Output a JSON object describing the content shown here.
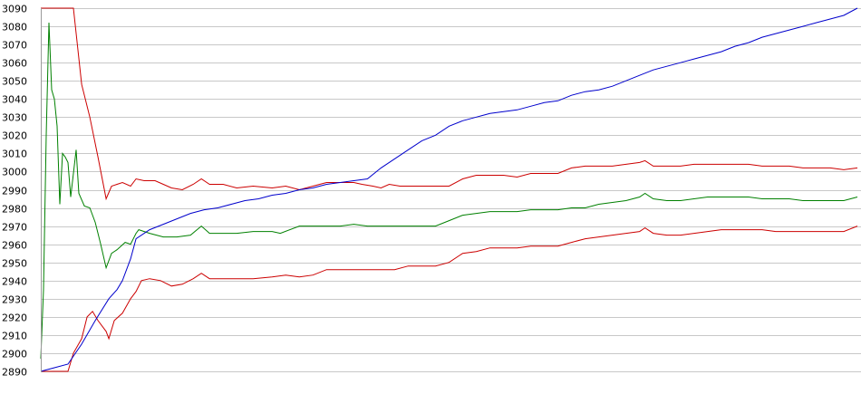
{
  "chart_data": {
    "type": "line",
    "title": "",
    "xlabel": "",
    "ylabel": "",
    "ylim": [
      2890,
      3090
    ],
    "yticks": [
      2890,
      2900,
      2910,
      2920,
      2930,
      2940,
      2950,
      2960,
      2970,
      2980,
      2990,
      3000,
      3010,
      3020,
      3030,
      3040,
      3050,
      3060,
      3070,
      3080,
      3090
    ],
    "xlim": [
      0,
      300
    ],
    "grid": true,
    "series": [
      {
        "color": "#cc0000",
        "points": [
          [
            0,
            3090
          ],
          [
            12,
            3090
          ],
          [
            15,
            3048
          ],
          [
            18,
            3030
          ],
          [
            21,
            3008
          ],
          [
            24,
            2985
          ],
          [
            26,
            2992
          ],
          [
            30,
            2994
          ],
          [
            33,
            2992
          ],
          [
            35,
            2996
          ],
          [
            38,
            2995
          ],
          [
            42,
            2995
          ],
          [
            45,
            2993
          ],
          [
            48,
            2991
          ],
          [
            52,
            2990
          ],
          [
            56,
            2993
          ],
          [
            59,
            2996
          ],
          [
            62,
            2993
          ],
          [
            67,
            2993
          ],
          [
            72,
            2991
          ],
          [
            78,
            2992
          ],
          [
            85,
            2991
          ],
          [
            90,
            2992
          ],
          [
            95,
            2990
          ],
          [
            100,
            2992
          ],
          [
            105,
            2994
          ],
          [
            110,
            2994
          ],
          [
            115,
            2994
          ],
          [
            118,
            2993
          ],
          [
            122,
            2992
          ],
          [
            125,
            2991
          ],
          [
            128,
            2993
          ],
          [
            132,
            2992
          ],
          [
            136,
            2992
          ],
          [
            140,
            2992
          ],
          [
            145,
            2992
          ],
          [
            150,
            2992
          ],
          [
            155,
            2996
          ],
          [
            160,
            2998
          ],
          [
            165,
            2998
          ],
          [
            170,
            2998
          ],
          [
            175,
            2997
          ],
          [
            180,
            2999
          ],
          [
            185,
            2999
          ],
          [
            190,
            2999
          ],
          [
            195,
            3002
          ],
          [
            200,
            3003
          ],
          [
            205,
            3003
          ],
          [
            210,
            3003
          ],
          [
            215,
            3004
          ],
          [
            220,
            3005
          ],
          [
            222,
            3006
          ],
          [
            225,
            3003
          ],
          [
            230,
            3003
          ],
          [
            235,
            3003
          ],
          [
            240,
            3004
          ],
          [
            245,
            3004
          ],
          [
            250,
            3004
          ],
          [
            255,
            3004
          ],
          [
            260,
            3004
          ],
          [
            265,
            3003
          ],
          [
            270,
            3003
          ],
          [
            275,
            3003
          ],
          [
            280,
            3002
          ],
          [
            285,
            3002
          ],
          [
            290,
            3002
          ],
          [
            295,
            3001
          ],
          [
            300,
            3002
          ]
        ]
      },
      {
        "color": "#008000",
        "points": [
          [
            0,
            2897
          ],
          [
            1,
            2935
          ],
          [
            2,
            3020
          ],
          [
            3,
            3082
          ],
          [
            4,
            3045
          ],
          [
            5,
            3040
          ],
          [
            6,
            3025
          ],
          [
            7,
            2982
          ],
          [
            8,
            3010
          ],
          [
            9,
            3008
          ],
          [
            10,
            3005
          ],
          [
            11,
            2986
          ],
          [
            13,
            3012
          ],
          [
            14,
            2988
          ],
          [
            16,
            2981
          ],
          [
            18,
            2980
          ],
          [
            20,
            2972
          ],
          [
            22,
            2960
          ],
          [
            24,
            2947
          ],
          [
            26,
            2955
          ],
          [
            28,
            2957
          ],
          [
            31,
            2961
          ],
          [
            33,
            2960
          ],
          [
            35,
            2966
          ],
          [
            36,
            2968
          ],
          [
            40,
            2966
          ],
          [
            45,
            2964
          ],
          [
            50,
            2964
          ],
          [
            55,
            2965
          ],
          [
            59,
            2970
          ],
          [
            62,
            2966
          ],
          [
            67,
            2966
          ],
          [
            72,
            2966
          ],
          [
            78,
            2967
          ],
          [
            85,
            2967
          ],
          [
            88,
            2966
          ],
          [
            95,
            2970
          ],
          [
            100,
            2970
          ],
          [
            105,
            2970
          ],
          [
            110,
            2970
          ],
          [
            115,
            2971
          ],
          [
            120,
            2970
          ],
          [
            125,
            2970
          ],
          [
            130,
            2970
          ],
          [
            135,
            2970
          ],
          [
            140,
            2970
          ],
          [
            145,
            2970
          ],
          [
            150,
            2973
          ],
          [
            155,
            2976
          ],
          [
            160,
            2977
          ],
          [
            165,
            2978
          ],
          [
            170,
            2978
          ],
          [
            175,
            2978
          ],
          [
            180,
            2979
          ],
          [
            185,
            2979
          ],
          [
            190,
            2979
          ],
          [
            195,
            2980
          ],
          [
            200,
            2980
          ],
          [
            205,
            2982
          ],
          [
            210,
            2983
          ],
          [
            215,
            2984
          ],
          [
            220,
            2986
          ],
          [
            222,
            2988
          ],
          [
            225,
            2985
          ],
          [
            230,
            2984
          ],
          [
            235,
            2984
          ],
          [
            240,
            2985
          ],
          [
            245,
            2986
          ],
          [
            250,
            2986
          ],
          [
            255,
            2986
          ],
          [
            260,
            2986
          ],
          [
            265,
            2985
          ],
          [
            270,
            2985
          ],
          [
            275,
            2985
          ],
          [
            280,
            2984
          ],
          [
            285,
            2984
          ],
          [
            290,
            2984
          ],
          [
            295,
            2984
          ],
          [
            300,
            2986
          ]
        ]
      },
      {
        "color": "#cc0000",
        "points": [
          [
            0,
            2890
          ],
          [
            10,
            2890
          ],
          [
            12,
            2900
          ],
          [
            15,
            2908
          ],
          [
            17,
            2920
          ],
          [
            19,
            2923
          ],
          [
            21,
            2918
          ],
          [
            24,
            2912
          ],
          [
            25,
            2908
          ],
          [
            27,
            2918
          ],
          [
            30,
            2922
          ],
          [
            33,
            2930
          ],
          [
            35,
            2934
          ],
          [
            37,
            2940
          ],
          [
            40,
            2941
          ],
          [
            44,
            2940
          ],
          [
            48,
            2937
          ],
          [
            52,
            2938
          ],
          [
            56,
            2941
          ],
          [
            59,
            2944
          ],
          [
            62,
            2941
          ],
          [
            67,
            2941
          ],
          [
            72,
            2941
          ],
          [
            78,
            2941
          ],
          [
            85,
            2942
          ],
          [
            90,
            2943
          ],
          [
            95,
            2942
          ],
          [
            100,
            2943
          ],
          [
            105,
            2946
          ],
          [
            110,
            2946
          ],
          [
            115,
            2946
          ],
          [
            120,
            2946
          ],
          [
            125,
            2946
          ],
          [
            130,
            2946
          ],
          [
            135,
            2948
          ],
          [
            140,
            2948
          ],
          [
            145,
            2948
          ],
          [
            150,
            2950
          ],
          [
            155,
            2955
          ],
          [
            160,
            2956
          ],
          [
            165,
            2958
          ],
          [
            170,
            2958
          ],
          [
            175,
            2958
          ],
          [
            180,
            2959
          ],
          [
            185,
            2959
          ],
          [
            190,
            2959
          ],
          [
            195,
            2961
          ],
          [
            200,
            2963
          ],
          [
            205,
            2964
          ],
          [
            210,
            2965
          ],
          [
            215,
            2966
          ],
          [
            220,
            2967
          ],
          [
            222,
            2969
          ],
          [
            225,
            2966
          ],
          [
            230,
            2965
          ],
          [
            235,
            2965
          ],
          [
            240,
            2966
          ],
          [
            245,
            2967
          ],
          [
            250,
            2968
          ],
          [
            255,
            2968
          ],
          [
            260,
            2968
          ],
          [
            265,
            2968
          ],
          [
            270,
            2967
          ],
          [
            275,
            2967
          ],
          [
            280,
            2967
          ],
          [
            285,
            2967
          ],
          [
            290,
            2967
          ],
          [
            295,
            2967
          ],
          [
            300,
            2970
          ]
        ]
      },
      {
        "color": "#0000cc",
        "points": [
          [
            0,
            2890
          ],
          [
            5,
            2892
          ],
          [
            10,
            2894
          ],
          [
            15,
            2905
          ],
          [
            20,
            2918
          ],
          [
            25,
            2930
          ],
          [
            28,
            2935
          ],
          [
            30,
            2940
          ],
          [
            33,
            2952
          ],
          [
            35,
            2963
          ],
          [
            40,
            2968
          ],
          [
            45,
            2971
          ],
          [
            50,
            2974
          ],
          [
            55,
            2977
          ],
          [
            60,
            2979
          ],
          [
            65,
            2980
          ],
          [
            70,
            2982
          ],
          [
            75,
            2984
          ],
          [
            80,
            2985
          ],
          [
            85,
            2987
          ],
          [
            90,
            2988
          ],
          [
            95,
            2990
          ],
          [
            100,
            2991
          ],
          [
            105,
            2993
          ],
          [
            110,
            2994
          ],
          [
            115,
            2995
          ],
          [
            120,
            2996
          ],
          [
            125,
            3002
          ],
          [
            130,
            3007
          ],
          [
            135,
            3012
          ],
          [
            140,
            3017
          ],
          [
            145,
            3020
          ],
          [
            150,
            3025
          ],
          [
            155,
            3028
          ],
          [
            160,
            3030
          ],
          [
            165,
            3032
          ],
          [
            170,
            3033
          ],
          [
            175,
            3034
          ],
          [
            180,
            3036
          ],
          [
            185,
            3038
          ],
          [
            190,
            3039
          ],
          [
            195,
            3042
          ],
          [
            200,
            3044
          ],
          [
            205,
            3045
          ],
          [
            210,
            3047
          ],
          [
            215,
            3050
          ],
          [
            220,
            3053
          ],
          [
            225,
            3056
          ],
          [
            230,
            3058
          ],
          [
            235,
            3060
          ],
          [
            240,
            3062
          ],
          [
            245,
            3064
          ],
          [
            250,
            3066
          ],
          [
            255,
            3069
          ],
          [
            260,
            3071
          ],
          [
            265,
            3074
          ],
          [
            270,
            3076
          ],
          [
            275,
            3078
          ],
          [
            280,
            3080
          ],
          [
            285,
            3082
          ],
          [
            290,
            3084
          ],
          [
            295,
            3086
          ],
          [
            300,
            3090
          ]
        ]
      }
    ]
  }
}
